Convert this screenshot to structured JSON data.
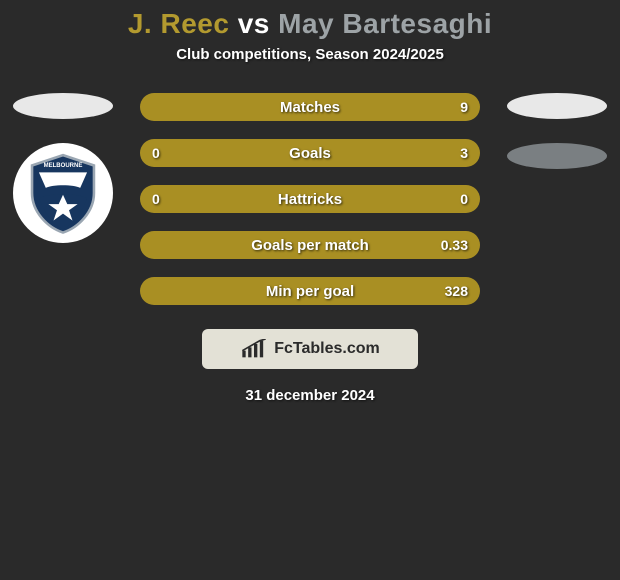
{
  "title": {
    "player1": "J. Reec",
    "vs": "vs",
    "player2": "May Bartesaghi",
    "color_player1": "#b39a2f",
    "color_vs": "#ffffff",
    "color_player2": "#9da3a6"
  },
  "subtitle": "Club competitions, Season 2024/2025",
  "left_oval_color": "#e8e8e8",
  "right_oval_top_color": "#e8e8e8",
  "right_oval_bottom_color": "#7a7f82",
  "badge": {
    "label": "MELBOURNE VICTORY",
    "bg": "#ffffff",
    "shield_fill": "#17365f",
    "shield_stroke": "#9aa6b2"
  },
  "rows": {
    "bar_color": "#a98f23",
    "text_color": "#ffffff",
    "items": [
      {
        "label": "Matches",
        "left": "",
        "right": "9"
      },
      {
        "label": "Goals",
        "left": "0",
        "right": "3"
      },
      {
        "label": "Hattricks",
        "left": "0",
        "right": "0"
      },
      {
        "label": "Goals per match",
        "left": "",
        "right": "0.33"
      },
      {
        "label": "Min per goal",
        "left": "",
        "right": "328"
      }
    ]
  },
  "branding": {
    "text": "FcTables.com",
    "bg": "#e3e1d6",
    "text_color": "#2b2b2b"
  },
  "date": "31 december 2024"
}
